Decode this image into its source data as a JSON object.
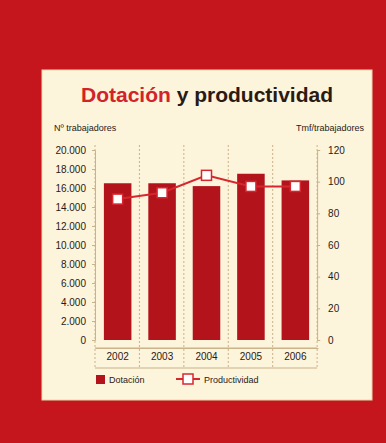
{
  "chart_data": {
    "type": "bar",
    "title": "Dotación y productividad",
    "y_label": "Nº trabajadores",
    "y2_label": "Tmf/trabajadores",
    "categories": [
      "2002",
      "2003",
      "2004",
      "2005",
      "2006"
    ],
    "series": [
      {
        "name": "Dotación",
        "type": "bar",
        "color": "#b3141c",
        "values": [
          16500,
          16500,
          16200,
          17500,
          16800
        ]
      },
      {
        "name": "Productividad",
        "type": "line",
        "axis": "y2",
        "color": "#d8262e",
        "marker": "square",
        "values": [
          89,
          93,
          104,
          97,
          97
        ]
      }
    ],
    "ylim": [
      0,
      20000
    ],
    "yticks": [
      0,
      {
        "value": 2000,
        "label": "2.000"
      },
      {
        "value": 4000,
        "label": "4.000"
      },
      {
        "value": 6000,
        "label": "6.000"
      },
      {
        "value": 8000,
        "label": "8.000"
      },
      {
        "value": 10000,
        "label": "10.000"
      },
      {
        "value": 12000,
        "label": "12.000"
      },
      {
        "value": 14000,
        "label": "14.000"
      },
      {
        "value": 16000,
        "label": "16.000"
      },
      {
        "value": 18000,
        "label": "18.000"
      },
      {
        "value": 20000,
        "label": "20.000"
      }
    ],
    "y2lim": [
      0,
      120
    ],
    "y2ticks": [
      0,
      20,
      40,
      60,
      80,
      100,
      120
    ],
    "legend": "bottom"
  }
}
